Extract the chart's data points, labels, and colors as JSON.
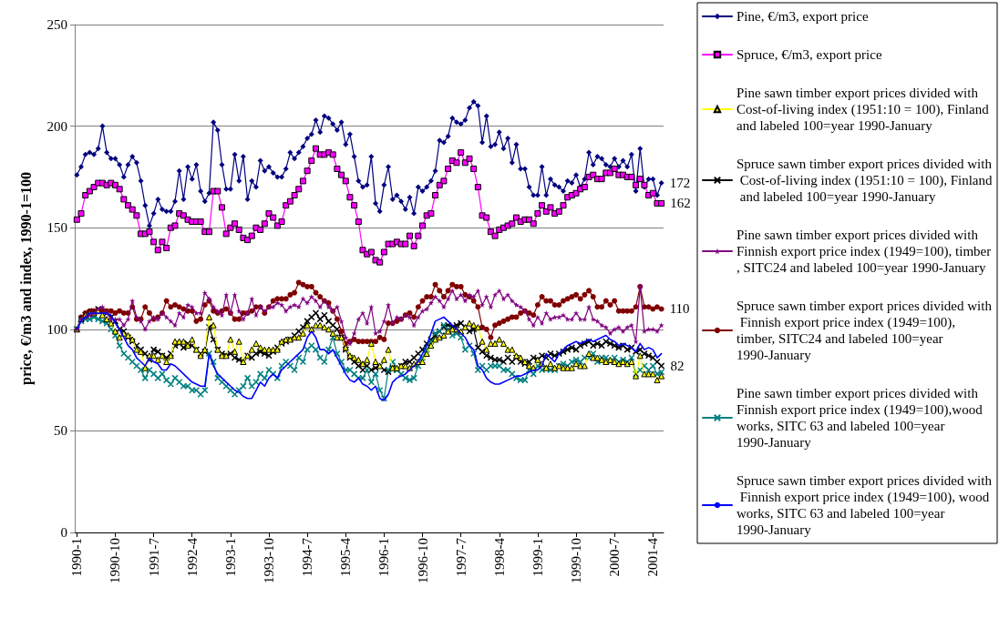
{
  "chart_data": {
    "type": "line",
    "ylabel": "price, €/m3 and index, 1990-1=100",
    "ylim": [
      0,
      250
    ],
    "yticks": [
      0,
      50,
      100,
      150,
      200,
      250
    ],
    "grid": "y",
    "legend": "right",
    "categories": [
      "1990-1",
      null,
      null,
      null,
      null,
      null,
      null,
      null,
      null,
      "1990-10",
      null,
      null,
      null,
      null,
      null,
      null,
      null,
      null,
      "1991-7",
      null,
      null,
      null,
      null,
      null,
      null,
      null,
      null,
      "1992-4",
      null,
      null,
      null,
      null,
      null,
      null,
      null,
      null,
      "1993-1",
      null,
      null,
      null,
      null,
      null,
      null,
      null,
      null,
      "1993-10",
      null,
      null,
      null,
      null,
      null,
      null,
      null,
      null,
      "1994-7",
      null,
      null,
      null,
      null,
      null,
      null,
      null,
      null,
      "1995-4",
      null,
      null,
      null,
      null,
      null,
      null,
      null,
      null,
      "1996-1",
      null,
      null,
      null,
      null,
      null,
      null,
      null,
      null,
      "1996-10",
      null,
      null,
      null,
      null,
      null,
      null,
      null,
      null,
      "1997-7",
      null,
      null,
      null,
      null,
      null,
      null,
      null,
      null,
      "1998-4",
      null,
      null,
      null,
      null,
      null,
      null,
      null,
      null,
      "1999-1",
      null,
      null,
      null,
      null,
      null,
      null,
      null,
      null,
      "1999-10",
      null,
      null,
      null,
      null,
      null,
      null,
      null,
      null,
      "2000-7",
      null,
      null,
      null,
      null,
      null,
      null,
      null,
      null,
      "2001-4",
      null,
      null
    ],
    "series": [
      {
        "name": "Pine, €/m3, export price",
        "color": "#000080",
        "marker": "diamond",
        "values": [
          176,
          180,
          186,
          187,
          186,
          189,
          200,
          187,
          184,
          184,
          181,
          175,
          181,
          185,
          182,
          173,
          161,
          151,
          157,
          164,
          159,
          158,
          158,
          163,
          178,
          164,
          180,
          174,
          181,
          168,
          163,
          167,
          202,
          198,
          181,
          169,
          169,
          186,
          173,
          185,
          164,
          173,
          170,
          183,
          178,
          180,
          177,
          175,
          175,
          179,
          187,
          184,
          187,
          190,
          194,
          196,
          203,
          197,
          205,
          204,
          201,
          198,
          202,
          191,
          196,
          185,
          173,
          170,
          171,
          185,
          162,
          158,
          171,
          180,
          164,
          166,
          163,
          159,
          165,
          157,
          170,
          168,
          170,
          173,
          178,
          193,
          192,
          195,
          204,
          202,
          201,
          203,
          209,
          212,
          210,
          192,
          205,
          190,
          191,
          197,
          189,
          194,
          182,
          191,
          179,
          179,
          170,
          166,
          166,
          180,
          166,
          174,
          171,
          170,
          168,
          173,
          172,
          176,
          170,
          174,
          187,
          181,
          185,
          184,
          181,
          180,
          184,
          180,
          183,
          180,
          186,
          168,
          189,
          170,
          174,
          174,
          166,
          172
        ],
        "value_labels": [
          null,
          null,
          null,
          null,
          null,
          null,
          null,
          null,
          null,
          null,
          null,
          null,
          null,
          null,
          null,
          null,
          null,
          null,
          null,
          null,
          null,
          null,
          null,
          null,
          null,
          null,
          null,
          null,
          null,
          null,
          null,
          null,
          null,
          null,
          null,
          null,
          null,
          null,
          null,
          null,
          null,
          null,
          null,
          null,
          null,
          null,
          null,
          null,
          null,
          null,
          null,
          null,
          null,
          null,
          null,
          null,
          null,
          null,
          null,
          null,
          null,
          null,
          null,
          null,
          null,
          null,
          null,
          null,
          null,
          null,
          null,
          null,
          null,
          null,
          null,
          null,
          null,
          null,
          null,
          null,
          null,
          null,
          null,
          null,
          null,
          null,
          null,
          null,
          null,
          null,
          null,
          null,
          null,
          null,
          null,
          null,
          null,
          null,
          null,
          null,
          null,
          null,
          null,
          null,
          null,
          null,
          null,
          null,
          null,
          null,
          null,
          null,
          null,
          null,
          null,
          null,
          null,
          null,
          null,
          null,
          null,
          null,
          null,
          null,
          null,
          null,
          null,
          null,
          null,
          null,
          null,
          null,
          null,
          null,
          null,
          null,
          null,
          "172"
        ]
      },
      {
        "name": "Spruce, €/m3, export price",
        "color": "#ff00ff",
        "marker": "square",
        "values": [
          154,
          157,
          166,
          168,
          170,
          172,
          172,
          171,
          172,
          171,
          169,
          164,
          161,
          159,
          156,
          147,
          147,
          148,
          143,
          139,
          143,
          140,
          150,
          151,
          157,
          156,
          154,
          153,
          153,
          153,
          148,
          148,
          168,
          168,
          160,
          147,
          150,
          152,
          149,
          145,
          144,
          146,
          150,
          149,
          152,
          157,
          155,
          151,
          153,
          161,
          163,
          166,
          169,
          173,
          178,
          183,
          189,
          186,
          186,
          187,
          186,
          179,
          176,
          173,
          165,
          161,
          153,
          139,
          137,
          138,
          134,
          133,
          138,
          142,
          142,
          143,
          142,
          142,
          146,
          141,
          146,
          151,
          156,
          157,
          166,
          171,
          173,
          179,
          183,
          182,
          187,
          182,
          184,
          179,
          170,
          156,
          155,
          148,
          146,
          149,
          150,
          151,
          152,
          155,
          153,
          154,
          154,
          152,
          157,
          161,
          158,
          160,
          157,
          158,
          161,
          165,
          166,
          167,
          169,
          170,
          175,
          176,
          174,
          174,
          177,
          177,
          179,
          176,
          176,
          175,
          175,
          171,
          174,
          171,
          166,
          167,
          162,
          162
        ],
        "value_labels": [
          null,
          null,
          null,
          null,
          null,
          null,
          null,
          null,
          null,
          null,
          null,
          null,
          null,
          null,
          null,
          null,
          null,
          null,
          null,
          null,
          null,
          null,
          null,
          null,
          null,
          null,
          null,
          null,
          null,
          null,
          null,
          null,
          null,
          null,
          null,
          null,
          null,
          null,
          null,
          null,
          null,
          null,
          null,
          null,
          null,
          null,
          null,
          null,
          null,
          null,
          null,
          null,
          null,
          null,
          null,
          null,
          null,
          null,
          null,
          null,
          null,
          null,
          null,
          null,
          null,
          null,
          null,
          null,
          null,
          null,
          null,
          null,
          null,
          null,
          null,
          null,
          null,
          null,
          null,
          null,
          null,
          null,
          null,
          null,
          null,
          null,
          null,
          null,
          null,
          null,
          null,
          null,
          null,
          null,
          null,
          null,
          null,
          null,
          null,
          null,
          null,
          null,
          null,
          null,
          null,
          null,
          null,
          null,
          null,
          null,
          null,
          null,
          null,
          null,
          null,
          null,
          null,
          null,
          null,
          null,
          null,
          null,
          null,
          null,
          null,
          null,
          null,
          null,
          null,
          null,
          null,
          null,
          null,
          null,
          null,
          null,
          null,
          "162"
        ]
      },
      {
        "name": "Pine sawn timber export prices divided with Cost-of-living index (1951:10 = 100), Finland and labeled 100=year 1990-January",
        "color": "#ffff00",
        "marker": "triangle",
        "values": [
          100,
          105,
          107,
          108,
          108,
          109,
          107,
          105,
          103,
          99,
          96,
          98,
          97,
          95,
          90,
          89,
          81,
          87,
          87,
          85,
          87,
          84,
          87,
          94,
          94,
          94,
          92,
          95,
          90,
          87,
          90,
          106,
          102,
          90,
          87,
          87,
          95,
          89,
          94,
          84,
          87,
          90,
          93,
          91,
          90,
          90,
          90,
          90,
          94,
          95,
          95,
          96,
          96,
          98,
          102,
          100,
          102,
          102,
          101,
          100,
          98,
          96,
          96,
          91,
          87,
          86,
          85,
          83,
          85,
          93,
          84,
          82,
          85,
          90,
          81,
          81,
          82,
          82,
          81,
          83,
          84,
          84,
          88,
          92,
          95,
          96,
          97,
          99,
          100,
          100,
          99,
          101,
          103,
          102,
          101,
          94,
          90,
          93,
          93,
          95,
          93,
          90,
          90,
          87,
          86,
          84,
          82,
          81,
          85,
          83,
          81,
          83,
          81,
          82,
          81,
          81,
          81,
          83,
          82,
          82,
          88,
          86,
          86,
          85,
          84,
          85,
          84,
          83,
          84,
          83,
          84,
          77,
          87,
          78,
          78,
          78,
          75,
          77
        ]
      },
      {
        "name": "Spruce sawn timber export prices divided with Cost-of-living index (1951:10 = 100), Finland and labeled 100=year 1990-January",
        "color": "#000000",
        "marker": "cross",
        "values": [
          100,
          105,
          107,
          108,
          109,
          110,
          109,
          108,
          106,
          104,
          100,
          99,
          96,
          94,
          92,
          90,
          88,
          85,
          90,
          89,
          87,
          86,
          88,
          92,
          93,
          91,
          93,
          92,
          90,
          88,
          89,
          101,
          95,
          90,
          88,
          87,
          88,
          86,
          85,
          84,
          87,
          86,
          88,
          89,
          88,
          87,
          89,
          91,
          93,
          94,
          95,
          97,
          99,
          101,
          104,
          106,
          108,
          105,
          107,
          104,
          102,
          100,
          96,
          90,
          86,
          84,
          82,
          80,
          82,
          80,
          81,
          82,
          80,
          79,
          81,
          80,
          82,
          84,
          84,
          86,
          88,
          90,
          93,
          95,
          97,
          99,
          101,
          102,
          101,
          102,
          103,
          101,
          99,
          100,
          91,
          89,
          87,
          86,
          85,
          85,
          84,
          86,
          84,
          86,
          84,
          83,
          84,
          86,
          85,
          87,
          86,
          88,
          87,
          88,
          89,
          90,
          91,
          90,
          92,
          93,
          94,
          92,
          93,
          92,
          94,
          93,
          92,
          91,
          92,
          90,
          91,
          89,
          90,
          88,
          87,
          86,
          84,
          82
        ],
        "value_labels": [
          null,
          null,
          null,
          null,
          null,
          null,
          null,
          null,
          null,
          null,
          null,
          null,
          null,
          null,
          null,
          null,
          null,
          null,
          null,
          null,
          null,
          null,
          null,
          null,
          null,
          null,
          null,
          null,
          null,
          null,
          null,
          null,
          null,
          null,
          null,
          null,
          null,
          null,
          null,
          null,
          null,
          null,
          null,
          null,
          null,
          null,
          null,
          null,
          null,
          null,
          null,
          null,
          null,
          null,
          null,
          null,
          null,
          null,
          null,
          null,
          null,
          null,
          null,
          null,
          null,
          null,
          null,
          null,
          null,
          null,
          null,
          null,
          null,
          null,
          null,
          null,
          null,
          null,
          null,
          null,
          null,
          null,
          null,
          null,
          null,
          null,
          null,
          null,
          null,
          null,
          null,
          null,
          null,
          null,
          null,
          null,
          null,
          null,
          null,
          null,
          null,
          null,
          null,
          null,
          null,
          null,
          null,
          null,
          null,
          null,
          null,
          null,
          null,
          null,
          null,
          null,
          null,
          null,
          null,
          null,
          null,
          null,
          null,
          null,
          null,
          null,
          null,
          null,
          null,
          null,
          null,
          null,
          null,
          null,
          null,
          null,
          null,
          "82"
        ]
      },
      {
        "name": "Pine sawn timber export prices divided with Finnish export price index (1949=100), timber, SITC24 and labeled 100=year 1990-January",
        "color": "#800080",
        "marker": "star",
        "values": [
          100,
          105,
          106,
          107,
          108,
          110,
          111,
          108,
          105,
          105,
          105,
          102,
          105,
          114,
          106,
          104,
          100,
          104,
          106,
          105,
          108,
          106,
          104,
          102,
          108,
          106,
          112,
          111,
          108,
          108,
          118,
          115,
          111,
          109,
          107,
          117,
          108,
          117,
          109,
          105,
          108,
          115,
          107,
          111,
          109,
          111,
          111,
          113,
          112,
          109,
          111,
          112,
          111,
          115,
          113,
          116,
          114,
          111,
          114,
          111,
          109,
          111,
          104,
          96,
          93,
          98,
          105,
          108,
          103,
          111,
          98,
          99,
          104,
          112,
          103,
          106,
          105,
          107,
          106,
          102,
          106,
          109,
          110,
          113,
          116,
          114,
          111,
          115,
          119,
          115,
          117,
          114,
          117,
          116,
          119,
          112,
          116,
          111,
          117,
          119,
          115,
          117,
          114,
          112,
          111,
          109,
          105,
          102,
          106,
          103,
          108,
          105,
          106,
          106,
          107,
          105,
          105,
          108,
          105,
          105,
          111,
          105,
          104,
          102,
          101,
          98,
          100,
          101,
          99,
          101,
          102,
          94,
          121,
          99,
          100,
          100,
          99,
          102
        ]
      },
      {
        "name": "Spruce sawn timber export prices divided with Finnish export price index (1949=100), timber, SITC24 and labeled 100=year 1990-January",
        "color": "#800000",
        "marker": "circle",
        "values": [
          100,
          106,
          108,
          109,
          109,
          109,
          109,
          109,
          109,
          108,
          109,
          108,
          108,
          111,
          105,
          105,
          111,
          108,
          105,
          106,
          108,
          114,
          111,
          112,
          111,
          110,
          109,
          109,
          104,
          105,
          112,
          114,
          109,
          108,
          109,
          110,
          108,
          105,
          105,
          108,
          108,
          109,
          111,
          111,
          108,
          111,
          114,
          115,
          115,
          115,
          117,
          118,
          123,
          122,
          121,
          121,
          118,
          116,
          114,
          113,
          109,
          105,
          99,
          93,
          94,
          95,
          94,
          94,
          94,
          94,
          94,
          96,
          95,
          103,
          103,
          104,
          105,
          107,
          108,
          106,
          111,
          114,
          116,
          116,
          122,
          119,
          116,
          119,
          122,
          121,
          121,
          117,
          116,
          114,
          111,
          101,
          100,
          96,
          102,
          103,
          104,
          105,
          106,
          106,
          108,
          109,
          108,
          107,
          112,
          116,
          114,
          114,
          112,
          112,
          114,
          115,
          116,
          117,
          115,
          117,
          119,
          116,
          111,
          111,
          114,
          112,
          114,
          109,
          109,
          109,
          109,
          111,
          121,
          111,
          111,
          110,
          111,
          110
        ],
        "value_labels": [
          null,
          null,
          null,
          null,
          null,
          null,
          null,
          null,
          null,
          null,
          null,
          null,
          null,
          null,
          null,
          null,
          null,
          null,
          null,
          null,
          null,
          null,
          null,
          null,
          null,
          null,
          null,
          null,
          null,
          null,
          null,
          null,
          null,
          null,
          null,
          null,
          null,
          null,
          null,
          null,
          null,
          null,
          null,
          null,
          null,
          null,
          null,
          null,
          null,
          null,
          null,
          null,
          null,
          null,
          null,
          null,
          null,
          null,
          null,
          null,
          null,
          null,
          null,
          null,
          null,
          null,
          null,
          null,
          null,
          null,
          null,
          null,
          null,
          null,
          null,
          null,
          null,
          null,
          null,
          null,
          null,
          null,
          null,
          null,
          null,
          null,
          null,
          null,
          null,
          null,
          null,
          null,
          null,
          null,
          null,
          null,
          null,
          null,
          null,
          null,
          null,
          null,
          null,
          null,
          null,
          null,
          null,
          null,
          null,
          null,
          null,
          null,
          null,
          null,
          null,
          null,
          null,
          null,
          null,
          null,
          null,
          null,
          null,
          null,
          null,
          null,
          null,
          null,
          null,
          null,
          null,
          null,
          null,
          null,
          null,
          null,
          null,
          "110"
        ]
      },
      {
        "name": "Pine sawn timber export prices divided with Finnish export price index (1949=100),wood works, SITC 63 and labeled 100=year 1990-January",
        "color": "#008080",
        "marker": "cross",
        "values": [
          100,
          104,
          105,
          105,
          106,
          105,
          104,
          103,
          100,
          97,
          92,
          88,
          86,
          84,
          82,
          80,
          76,
          80,
          78,
          76,
          78,
          75,
          73,
          76,
          74,
          72,
          72,
          70,
          70,
          68,
          70,
          88,
          84,
          76,
          74,
          72,
          70,
          68,
          70,
          72,
          76,
          72,
          74,
          78,
          76,
          80,
          78,
          76,
          82,
          84,
          82,
          80,
          86,
          84,
          90,
          92,
          90,
          86,
          84,
          90,
          96,
          88,
          84,
          80,
          80,
          78,
          76,
          76,
          80,
          74,
          78,
          70,
          66,
          80,
          84,
          80,
          78,
          76,
          75,
          76,
          82,
          86,
          90,
          94,
          98,
          99,
          102,
          100,
          97,
          98,
          96,
          90,
          92,
          88,
          80,
          82,
          80,
          82,
          82,
          82,
          80,
          80,
          78,
          76,
          75,
          75,
          80,
          78,
          82,
          80,
          81,
          80,
          80,
          82,
          83,
          82,
          84,
          85,
          84,
          86,
          86,
          88,
          84,
          86,
          86,
          84,
          86,
          84,
          85,
          84,
          86,
          78,
          80,
          82,
          80,
          82,
          78,
          79
        ]
      },
      {
        "name": "Spruce sawn timber export prices divided with Finnish export price index (1949=100), wood works, SITC 63 and labeled 100=year 1990-January",
        "color": "#0000ff",
        "marker": "none",
        "values": [
          100,
          104,
          106,
          108,
          108,
          108,
          108,
          108,
          107,
          103,
          100,
          96,
          92,
          90,
          86,
          84,
          82,
          86,
          84,
          83,
          80,
          80,
          83,
          82,
          80,
          78,
          76,
          74,
          73,
          72,
          72,
          88,
          82,
          78,
          76,
          74,
          72,
          70,
          69,
          67,
          66,
          66,
          70,
          74,
          72,
          76,
          78,
          76,
          80,
          82,
          84,
          86,
          88,
          90,
          96,
          99,
          96,
          90,
          90,
          88,
          90,
          86,
          82,
          78,
          75,
          74,
          76,
          73,
          72,
          70,
          72,
          66,
          65,
          68,
          74,
          76,
          77,
          78,
          80,
          82,
          84,
          88,
          92,
          98,
          104,
          105,
          106,
          104,
          102,
          100,
          98,
          96,
          92,
          90,
          82,
          80,
          76,
          74,
          73,
          73,
          74,
          75,
          76,
          77,
          77,
          78,
          79,
          80,
          80,
          82,
          88,
          86,
          84,
          88,
          90,
          92,
          93,
          94,
          93,
          94,
          95,
          94,
          95,
          96,
          97,
          95,
          94,
          92,
          93,
          92,
          91,
          89,
          93,
          90,
          91,
          90,
          86,
          88
        ]
      }
    ]
  }
}
